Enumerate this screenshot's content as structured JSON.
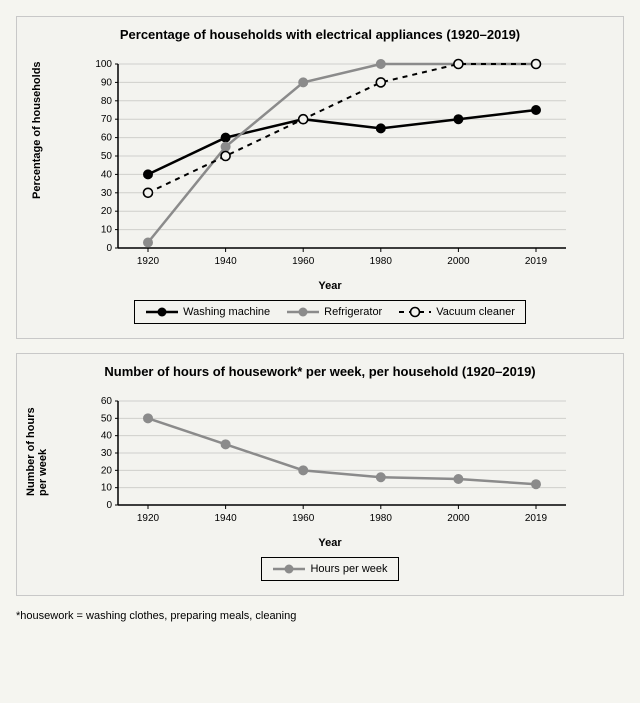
{
  "chart1": {
    "type": "line",
    "title": "Percentage of households with electrical appliances\n(1920–2019)",
    "xlabel": "Year",
    "ylabel": "Percentage of households",
    "categories": [
      "1920",
      "1940",
      "1960",
      "1980",
      "2000",
      "2019"
    ],
    "ylim": [
      0,
      100
    ],
    "ytick_step": 10,
    "grid_color": "#cfcfcc",
    "axis_color": "#000000",
    "background_color": "#f3f3ef",
    "label_fontsize": 11,
    "title_fontsize": 13,
    "tick_fontsize": 10,
    "series": [
      {
        "name": "Washing machine",
        "values": [
          40,
          60,
          70,
          65,
          70,
          75
        ],
        "color": "#000000",
        "line_width": 2.5,
        "marker": "circle-filled",
        "marker_size": 4.5,
        "dash": "none"
      },
      {
        "name": "Refrigerator",
        "values": [
          3,
          55,
          90,
          100,
          100,
          100
        ],
        "color": "#8b8b8b",
        "line_width": 2.5,
        "marker": "circle-filled",
        "marker_size": 4.5,
        "dash": "none"
      },
      {
        "name": "Vacuum cleaner",
        "values": [
          30,
          50,
          70,
          90,
          100,
          100
        ],
        "color": "#000000",
        "line_width": 2,
        "marker": "circle-open",
        "marker_size": 4.5,
        "dash": "5,5"
      }
    ]
  },
  "chart2": {
    "type": "line",
    "title": "Number of hours of housework* per week,\nper household (1920–2019)",
    "xlabel": "Year",
    "ylabel": "Number of hours\nper week",
    "categories": [
      "1920",
      "1940",
      "1960",
      "1980",
      "2000",
      "2019"
    ],
    "ylim": [
      0,
      60
    ],
    "ytick_step": 10,
    "grid_color": "#cfcfcc",
    "axis_color": "#000000",
    "background_color": "#f3f3ef",
    "label_fontsize": 11,
    "title_fontsize": 13,
    "tick_fontsize": 10,
    "series": [
      {
        "name": "Hours per week",
        "values": [
          50,
          35,
          20,
          16,
          15,
          12
        ],
        "color": "#8b8b8b",
        "line_width": 2.5,
        "marker": "circle-filled",
        "marker_size": 4.5,
        "dash": "none"
      }
    ]
  },
  "footnote": "*housework = washing clothes, preparing meals, cleaning"
}
